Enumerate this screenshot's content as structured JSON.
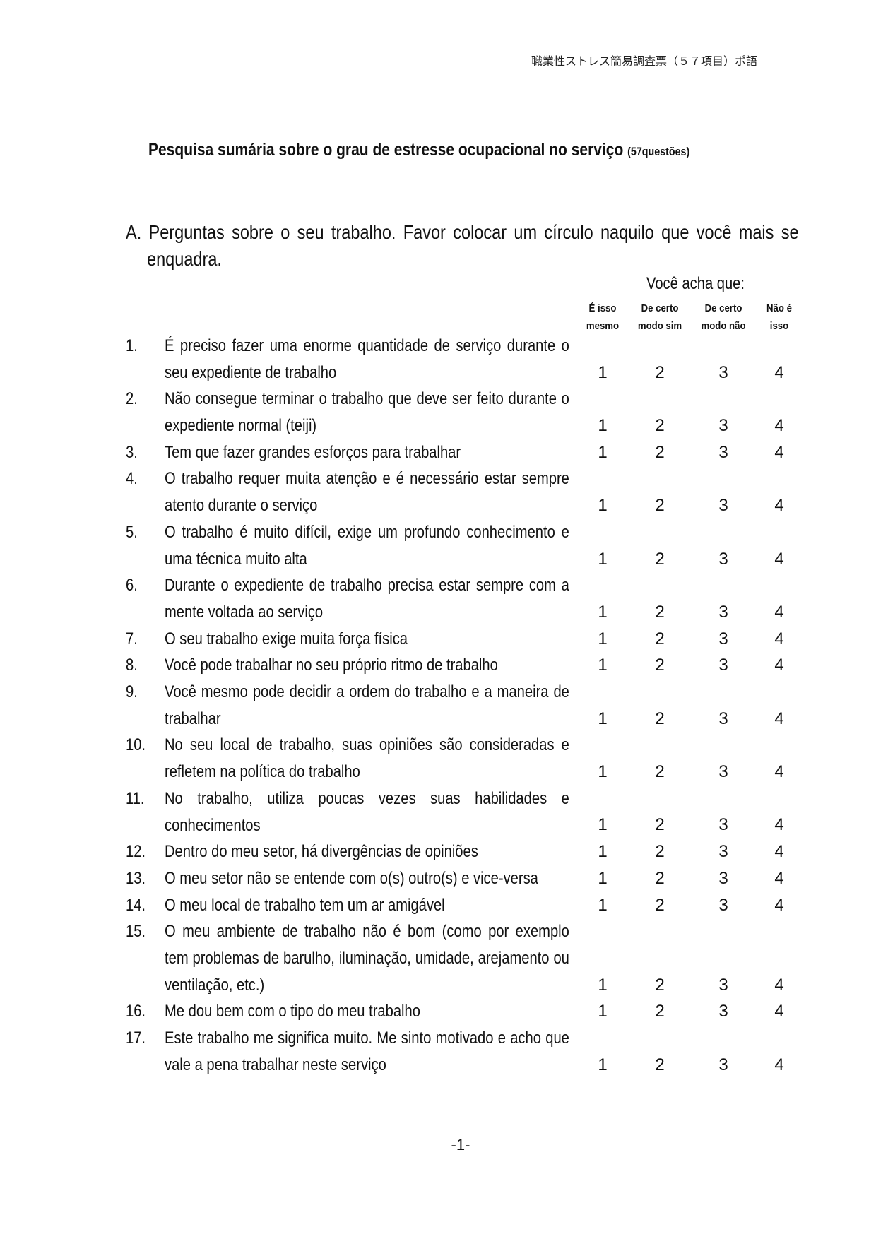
{
  "header": {
    "running_title": "職業性ストレス簡易調査票（５７項目）ポ語"
  },
  "title": {
    "main": "Pesquisa sumária sobre o grau de estresse ocupacional no serviço",
    "note": "(57questões)"
  },
  "section_a": {
    "instruction_line1": "A. Perguntas sobre o seu trabalho. Favor colocar um círculo naquilo que você mais se",
    "instruction_line2": "enquadra.",
    "scale_prompt": "Você acha que:",
    "columns": [
      {
        "line1": "É isso",
        "line2": "mesmo"
      },
      {
        "line1": "De certo",
        "line2": "modo sim"
      },
      {
        "line1": "De certo",
        "line2": "modo não"
      },
      {
        "line1": "Não é",
        "line2": "isso"
      }
    ],
    "options": [
      "1",
      "2",
      "3",
      "4"
    ],
    "questions": [
      {
        "n": "1.",
        "text": "É preciso fazer uma enorme quantidade de serviço durante o seu expediente de trabalho",
        "lines": 2
      },
      {
        "n": "2.",
        "text": "Não consegue terminar o trabalho que deve ser feito durante o expediente normal (teiji)",
        "lines": 2
      },
      {
        "n": "3.",
        "text": "Tem que fazer grandes esforços para trabalhar",
        "lines": 1
      },
      {
        "n": "4.",
        "text": "O trabalho requer muita atenção e é necessário estar sempre atento durante o serviço",
        "lines": 2
      },
      {
        "n": "5.",
        "text": "O trabalho é muito difícil, exige um profundo conhecimento e uma técnica muito alta",
        "lines": 2
      },
      {
        "n": "6.",
        "text": "Durante o expediente de trabalho precisa estar sempre com a mente voltada ao serviço",
        "lines": 2
      },
      {
        "n": "7.",
        "text": "O seu trabalho exige muita força física",
        "lines": 1
      },
      {
        "n": "8.",
        "text": "Você pode trabalhar no seu próprio ritmo de trabalho",
        "lines": 1
      },
      {
        "n": "9.",
        "text": "Você mesmo pode decidir a ordem do trabalho e a maneira de trabalhar",
        "lines": 2
      },
      {
        "n": "10.",
        "text": "No seu local de trabalho, suas opiniões são consideradas e refletem na política do trabalho",
        "lines": 2
      },
      {
        "n": "11.",
        "text": "No trabalho, utiliza poucas vezes suas habilidades e conhecimentos",
        "lines": 2
      },
      {
        "n": "12.",
        "text": "Dentro do meu setor, há divergências de opiniões",
        "lines": 1
      },
      {
        "n": "13.",
        "text": "O meu setor não se entende com o(s) outro(s) e vice-versa",
        "lines": 1
      },
      {
        "n": "14.",
        "text": "O meu local de trabalho tem um ar amigável",
        "lines": 1
      },
      {
        "n": "15.",
        "text": "O meu ambiente de trabalho não é bom (como por exemplo tem problemas de barulho, iluminação, umidade, arejamento ou ventilação, etc.)",
        "lines": 3
      },
      {
        "n": "16.",
        "text": "Me dou bem com o tipo do meu trabalho",
        "lines": 1
      },
      {
        "n": "17.",
        "text": "Este trabalho me significa muito. Me sinto motivado e acho que vale a pena trabalhar neste serviço",
        "lines": 2
      }
    ]
  },
  "footer": {
    "page_number": "-1-"
  }
}
